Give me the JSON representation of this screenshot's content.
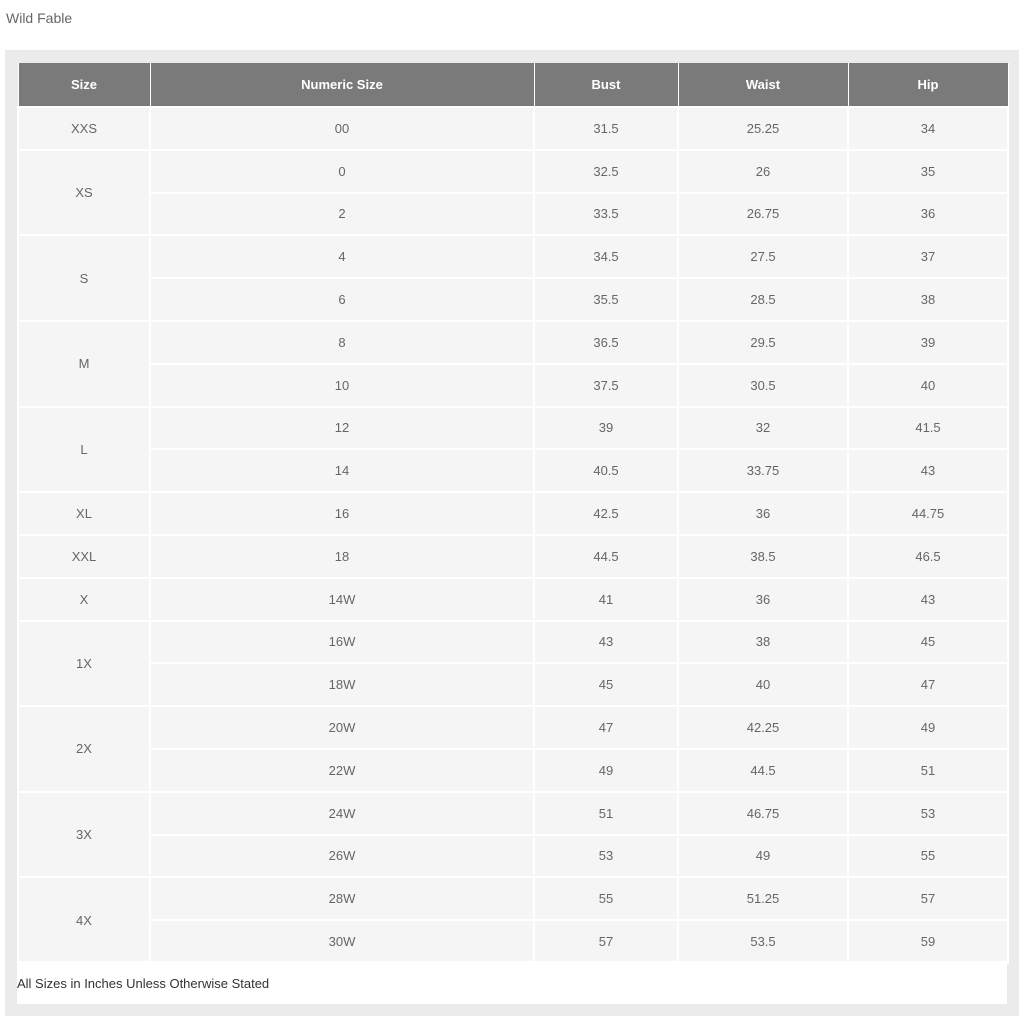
{
  "brand": "Wild Fable",
  "columns": [
    "Size",
    "Numeric Size",
    "Bust",
    "Waist",
    "Hip"
  ],
  "groups": [
    {
      "size": "XXS",
      "rows": [
        [
          "00",
          "31.5",
          "25.25",
          "34"
        ]
      ]
    },
    {
      "size": "XS",
      "rows": [
        [
          "0",
          "32.5",
          "26",
          "35"
        ],
        [
          "2",
          "33.5",
          "26.75",
          "36"
        ]
      ]
    },
    {
      "size": "S",
      "rows": [
        [
          "4",
          "34.5",
          "27.5",
          "37"
        ],
        [
          "6",
          "35.5",
          "28.5",
          "38"
        ]
      ]
    },
    {
      "size": "M",
      "rows": [
        [
          "8",
          "36.5",
          "29.5",
          "39"
        ],
        [
          "10",
          "37.5",
          "30.5",
          "40"
        ]
      ]
    },
    {
      "size": "L",
      "rows": [
        [
          "12",
          "39",
          "32",
          "41.5"
        ],
        [
          "14",
          "40.5",
          "33.75",
          "43"
        ]
      ]
    },
    {
      "size": "XL",
      "rows": [
        [
          "16",
          "42.5",
          "36",
          "44.75"
        ]
      ]
    },
    {
      "size": "XXL",
      "rows": [
        [
          "18",
          "44.5",
          "38.5",
          "46.5"
        ]
      ]
    },
    {
      "size": "X",
      "rows": [
        [
          "14W",
          "41",
          "36",
          "43"
        ]
      ]
    },
    {
      "size": "1X",
      "rows": [
        [
          "16W",
          "43",
          "38",
          "45"
        ],
        [
          "18W",
          "45",
          "40",
          "47"
        ]
      ]
    },
    {
      "size": "2X",
      "rows": [
        [
          "20W",
          "47",
          "42.25",
          "49"
        ],
        [
          "22W",
          "49",
          "44.5",
          "51"
        ]
      ]
    },
    {
      "size": "3X",
      "rows": [
        [
          "24W",
          "51",
          "46.75",
          "53"
        ],
        [
          "26W",
          "53",
          "49",
          "55"
        ]
      ]
    },
    {
      "size": "4X",
      "rows": [
        [
          "28W",
          "55",
          "51.25",
          "57"
        ],
        [
          "30W",
          "57",
          "53.5",
          "59"
        ]
      ]
    }
  ],
  "footnote": "All Sizes in Inches Unless Otherwise Stated"
}
